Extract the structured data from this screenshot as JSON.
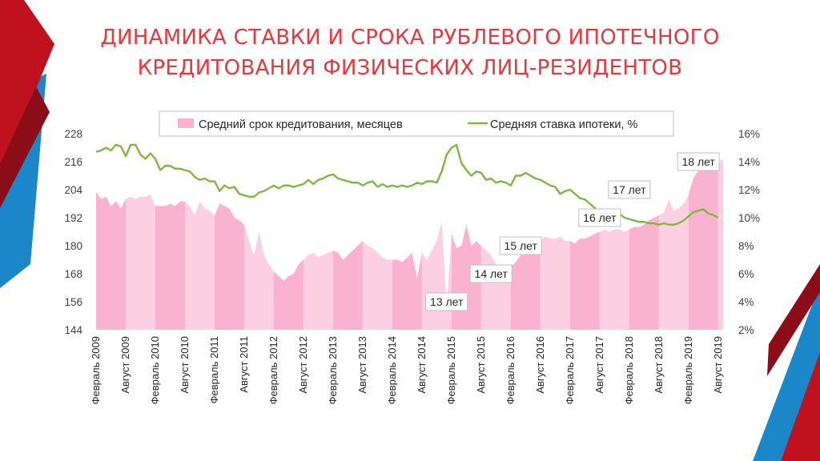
{
  "title": {
    "line1": "ДИНАМИКА СТАВКИ И СРОКА РУБЛЕВОГО ИПОТЕЧНОГО",
    "line2": "КРЕДИТОВАНИЯ ФИЗИЧЕСКИХ ЛИЦ-РЕЗИДЕНТОВ"
  },
  "colors": {
    "title": "#e8373d",
    "area_dark": "#f9b3cf",
    "area_light": "#fcd0e1",
    "line": "#7fb83f",
    "deco_red": "#c0111f",
    "deco_blue": "#1b87c9"
  },
  "chart_data": {
    "type": "area",
    "start_month": "2009-02",
    "left_axis": {
      "min": 144,
      "max": 228,
      "ticks": [
        144,
        156,
        168,
        180,
        192,
        204,
        216,
        228
      ]
    },
    "right_axis": {
      "min": 2,
      "max": 16,
      "ticks": [
        "2%",
        "4%",
        "6%",
        "8%",
        "10%",
        "12%",
        "14%",
        "16%"
      ]
    },
    "x_tick_labels": [
      "Февраль 2009",
      "Август 2009",
      "Февраль 2010",
      "Август 2010",
      "Февраль 2011",
      "Август 2011",
      "Февраль 2012",
      "Август 2012",
      "Февраль 2013",
      "Август 2013",
      "Февраль 2014",
      "Август 2014",
      "Февраль 2015",
      "Август 2015",
      "Февраль 2016",
      "Август 2016",
      "Февраль 2017",
      "Август 2017",
      "Февраль 2018",
      "Август 2018",
      "Февраль 2019",
      "Август 2019"
    ],
    "legend": {
      "position": "top",
      "term_label": "Средний срок кредитования, месяцев",
      "rate_label": "Средняя ставка ипотеки, %"
    },
    "series": [
      {
        "name": "Средний срок кредитования, месяцев",
        "axis": "left",
        "values": [
          203,
          200,
          201,
          197,
          199,
          196,
          200,
          201,
          200,
          201,
          201,
          202,
          197,
          197,
          197,
          198,
          197,
          199,
          199,
          197,
          193,
          199,
          196,
          195,
          193,
          198,
          197,
          196,
          192,
          191,
          189,
          182,
          176,
          186,
          176,
          172,
          169,
          167,
          165,
          167,
          168,
          172,
          174,
          176,
          177,
          175,
          176,
          177,
          178,
          177,
          174,
          176,
          178,
          180,
          182,
          180,
          179,
          177,
          175,
          174,
          174,
          174,
          173,
          175,
          177,
          166,
          177,
          174,
          178,
          182,
          190,
          154,
          185,
          179,
          180,
          189,
          180,
          182,
          180,
          178,
          176,
          172,
          170,
          170,
          171,
          173,
          176,
          176,
          178,
          180,
          182,
          184,
          183,
          183,
          184,
          182,
          182,
          181,
          183,
          183,
          184,
          185,
          186,
          187,
          186,
          187,
          187,
          186,
          187,
          188,
          188,
          189,
          191,
          192,
          193,
          194,
          200,
          195,
          196,
          198,
          202,
          209,
          212,
          214,
          215,
          216,
          216,
          217
        ]
      },
      {
        "name": "Средняя ставка ипотеки, %",
        "axis": "right",
        "values": [
          14.7,
          14.8,
          15.0,
          14.8,
          15.2,
          15.1,
          14.4,
          15.2,
          15.2,
          14.5,
          14.2,
          14.6,
          14.2,
          13.4,
          13.7,
          13.7,
          13.5,
          13.5,
          13.4,
          13.3,
          12.9,
          12.7,
          12.8,
          12.6,
          12.6,
          11.9,
          12.3,
          12.1,
          12.2,
          11.7,
          11.6,
          11.5,
          11.5,
          11.8,
          11.9,
          12.1,
          12.3,
          12.1,
          12.3,
          12.3,
          12.2,
          12.3,
          12.4,
          12.7,
          12.4,
          12.7,
          12.8,
          13.0,
          13.1,
          12.8,
          12.7,
          12.6,
          12.5,
          12.5,
          12.3,
          12.5,
          12.6,
          12.2,
          12.4,
          12.2,
          12.3,
          12.2,
          12.3,
          12.2,
          12.3,
          12.5,
          12.4,
          12.6,
          12.6,
          12.5,
          13.3,
          14.5,
          15.0,
          15.2,
          13.9,
          13.4,
          13.0,
          13.3,
          13.2,
          12.7,
          12.8,
          12.5,
          12.6,
          12.5,
          12.3,
          13.0,
          13.0,
          13.2,
          13.0,
          12.8,
          12.7,
          12.5,
          12.3,
          12.2,
          11.7,
          11.9,
          12.0,
          11.7,
          11.4,
          11.3,
          11.0,
          10.7,
          10.4,
          10.2,
          10.1,
          10.2,
          10.3,
          10.0,
          9.9,
          9.8,
          9.7,
          9.7,
          9.6,
          9.6,
          9.5,
          9.6,
          9.5,
          9.5,
          9.6,
          9.8,
          10.1,
          10.4,
          10.5,
          10.6,
          10.3,
          10.2,
          10.0
        ]
      }
    ],
    "annotations": [
      {
        "label": "18 лет",
        "value": 216,
        "month_index": 122
      },
      {
        "label": "17 лет",
        "value": 204,
        "month_index": 108
      },
      {
        "label": "16 лет",
        "value": 192,
        "month_index": 102
      },
      {
        "label": "15 лет",
        "value": 180,
        "month_index": 86
      },
      {
        "label": "14 лет",
        "value": 168,
        "month_index": 80
      },
      {
        "label": "13 лет",
        "value": 156,
        "month_index": 71
      }
    ]
  }
}
